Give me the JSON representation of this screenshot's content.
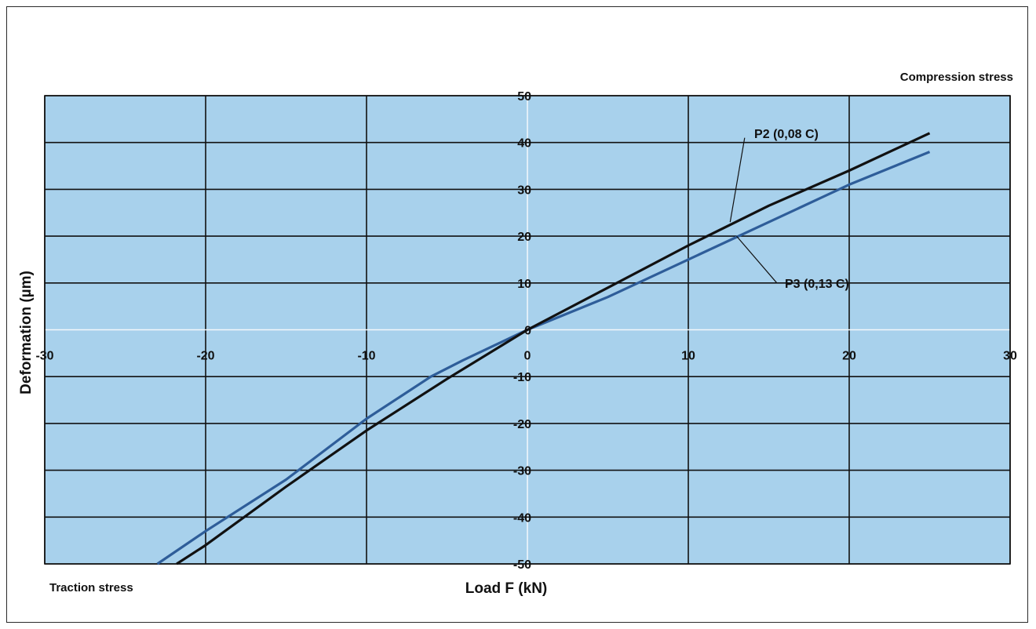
{
  "chart_data": {
    "type": "line",
    "ylabel": "Deformation  (µm)",
    "xlabel": "Load F (kN)",
    "xlim": [
      -30,
      30
    ],
    "ylim": [
      -50,
      50
    ],
    "x_ticks": [
      -30,
      -20,
      -10,
      0,
      10,
      20,
      30
    ],
    "y_ticks": [
      50,
      40,
      30,
      20,
      10,
      0,
      -10,
      -20,
      -30,
      -40,
      -50
    ],
    "grid": true,
    "annotations": {
      "compression": "Compression stress",
      "traction": "Traction stress"
    },
    "series": [
      {
        "name": "P2 (0,08 C)",
        "color": "#111111",
        "points": [
          [
            -21.8,
            -50
          ],
          [
            -20,
            -46
          ],
          [
            -15,
            -33.5
          ],
          [
            -10,
            -21.5
          ],
          [
            -5,
            -10.5
          ],
          [
            0,
            0
          ],
          [
            5,
            9
          ],
          [
            10,
            18
          ],
          [
            15,
            26.5
          ],
          [
            20,
            34
          ],
          [
            25,
            42
          ]
        ]
      },
      {
        "name": "P3 (0,13 C)",
        "color": "#2e5d99",
        "points": [
          [
            -23,
            -50
          ],
          [
            -20,
            -43
          ],
          [
            -15,
            -32
          ],
          [
            -10,
            -19
          ],
          [
            -6,
            -10
          ],
          [
            -4,
            -6.5
          ],
          [
            0,
            0
          ],
          [
            5,
            7
          ],
          [
            10,
            15
          ],
          [
            15,
            23
          ],
          [
            20,
            31
          ],
          [
            25,
            38
          ]
        ]
      }
    ]
  },
  "colors": {
    "plot_background": "#a8d1ec",
    "grid": "#111111",
    "zero_axis": "#f4f8fb"
  }
}
